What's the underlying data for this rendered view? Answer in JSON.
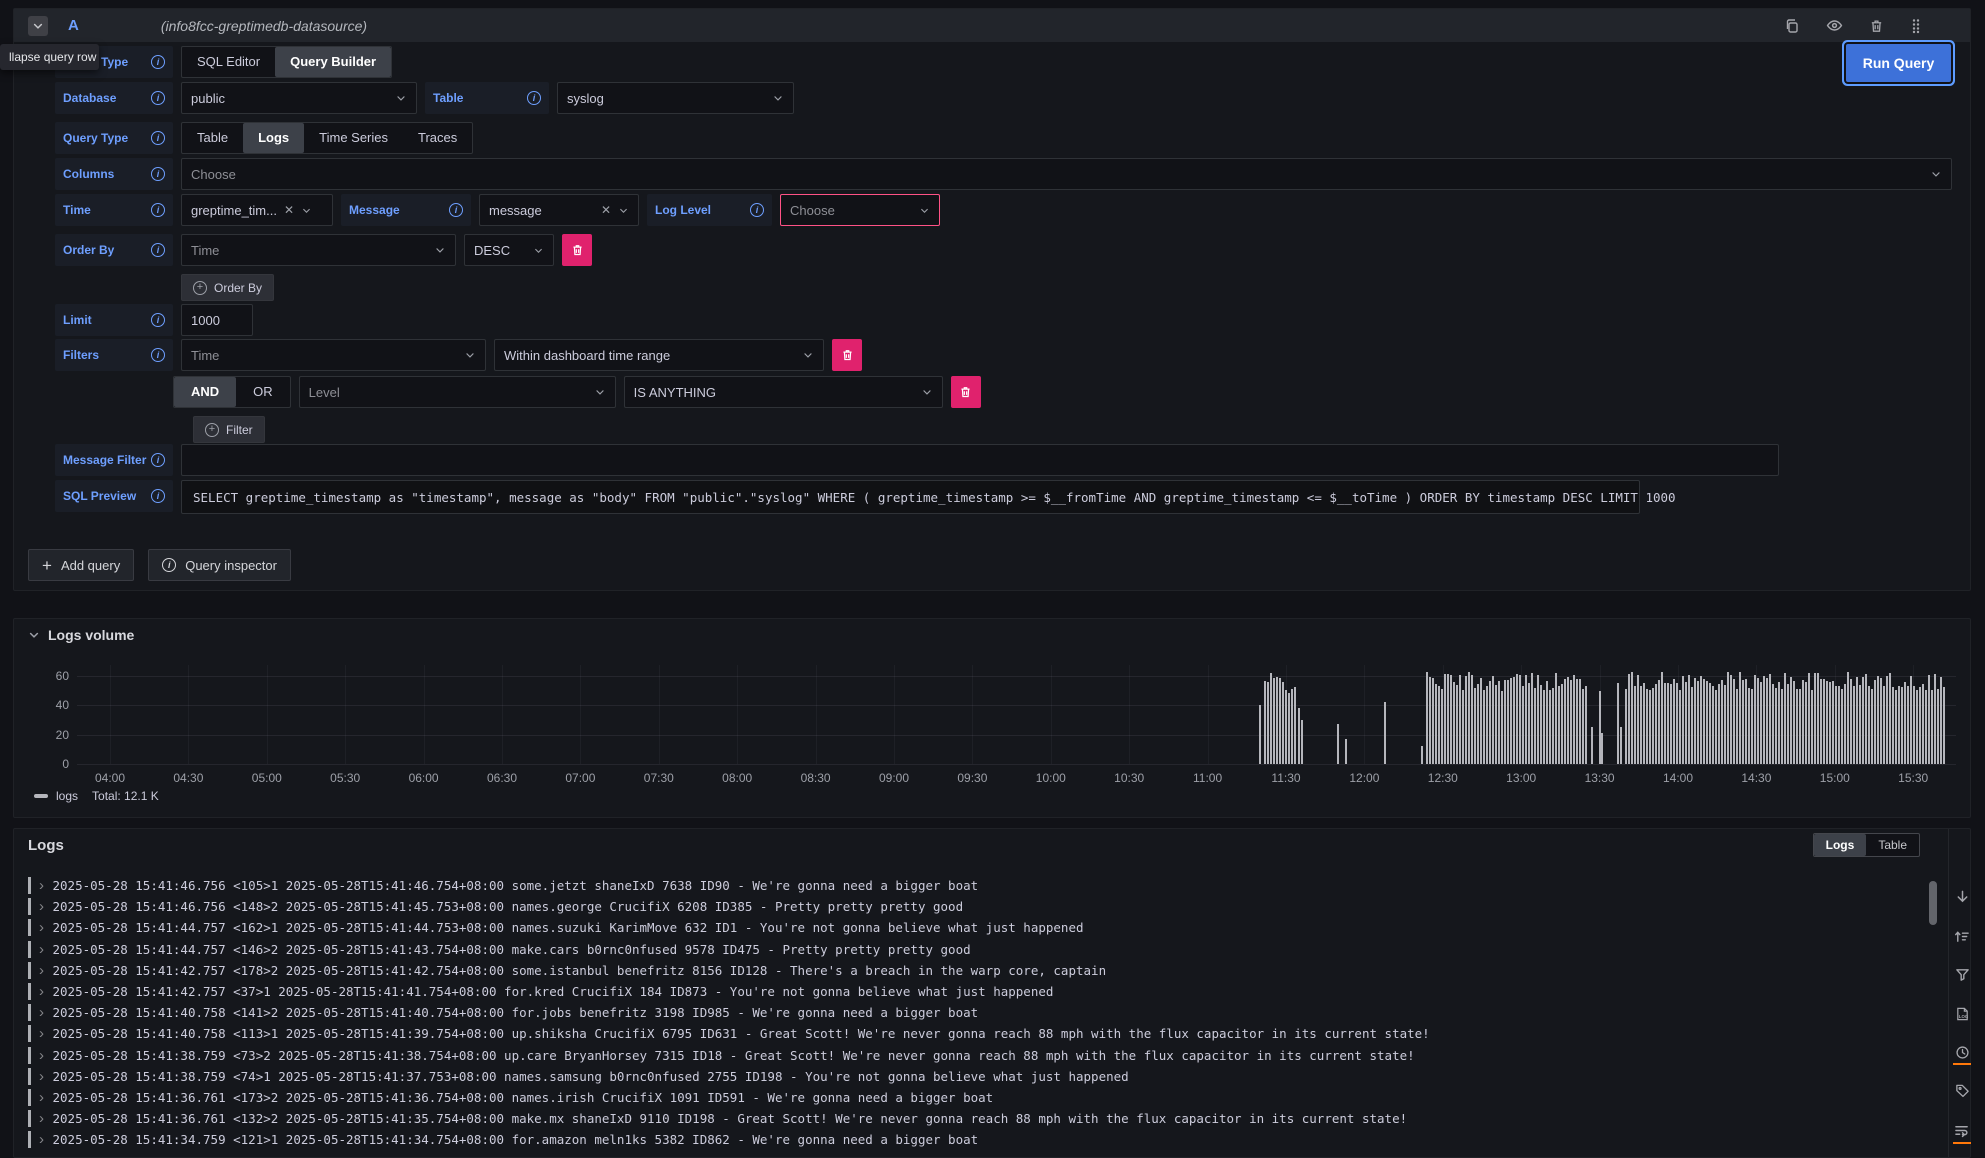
{
  "colors": {
    "accent": "#3d71d9",
    "focus_ring": "#5e9cff",
    "destructive": "#e0226d",
    "invalid_border": "#ff5286",
    "label_blue": "#6e9fff",
    "bar": "#b5b6bc",
    "orange_indicator": "#ff780a"
  },
  "query_row": {
    "ref_id": "A",
    "datasource": "(info8fcc-greptimedb-datasource)",
    "collapse_tooltip": "llapse query row",
    "run_query_label": "Run Query",
    "header_icons": [
      "duplicate-query-icon",
      "hide-response-icon",
      "remove-query-icon",
      "drag-handle-icon"
    ]
  },
  "builder": {
    "editor_type": {
      "label": "Editor Type",
      "tabs": [
        "SQL Editor",
        "Query Builder"
      ],
      "selected": "Query Builder"
    },
    "database": {
      "label": "Database",
      "value": "public"
    },
    "table": {
      "label": "Table",
      "value": "syslog"
    },
    "query_type": {
      "label": "Query Type",
      "tabs": [
        "Table",
        "Logs",
        "Time Series",
        "Traces"
      ],
      "selected": "Logs"
    },
    "columns": {
      "label": "Columns",
      "placeholder": "Choose"
    },
    "time": {
      "label": "Time",
      "value": "greptime_tim..."
    },
    "message": {
      "label": "Message",
      "value": "message"
    },
    "log_level": {
      "label": "Log Level",
      "placeholder": "Choose"
    },
    "order_by": {
      "label": "Order By",
      "field_placeholder": "Time",
      "direction": "DESC",
      "add_label": "Order By"
    },
    "limit": {
      "label": "Limit",
      "value": "1000"
    },
    "filters": {
      "label": "Filters",
      "row1": {
        "field_placeholder": "Time",
        "operator": "Within dashboard time range"
      },
      "row2": {
        "and_label": "AND",
        "or_label": "OR",
        "selected": "AND",
        "field_placeholder": "Level",
        "operator": "IS ANYTHING"
      },
      "add_label": "Filter"
    },
    "message_filter": {
      "label": "Message Filter",
      "value": ""
    },
    "sql_preview": {
      "label": "SQL Preview",
      "sql": "SELECT greptime_timestamp as \"timestamp\", message as \"body\" FROM \"public\".\"syslog\" WHERE ( greptime_timestamp >= $__fromTime AND greptime_timestamp <= $__toTime ) ORDER BY timestamp DESC LIMIT 1000"
    }
  },
  "footer": {
    "add_query": "Add query",
    "query_inspector": "Query inspector"
  },
  "logs_volume": {
    "title": "Logs volume",
    "legend": {
      "series": "logs",
      "total": "Total: 12.1 K"
    },
    "chart_data": {
      "type": "bar",
      "title": "Logs volume",
      "ylabel": "",
      "ylim": [
        0,
        67
      ],
      "yticks": [
        0,
        20,
        40,
        60
      ],
      "xticks": [
        "04:00",
        "04:30",
        "05:00",
        "05:30",
        "06:00",
        "06:30",
        "07:00",
        "07:30",
        "08:00",
        "08:30",
        "09:00",
        "09:30",
        "10:00",
        "10:30",
        "11:00",
        "11:30",
        "12:00",
        "12:30",
        "13:00",
        "13:30",
        "14:00",
        "14:30",
        "15:00",
        "15:30"
      ],
      "series": [
        {
          "name": "logs",
          "total": 12100
        }
      ],
      "clusters": [
        {
          "from": "11:22",
          "to": "11:34",
          "min": 48,
          "max": 63
        },
        {
          "from": "12:24",
          "to": "13:25",
          "min": 50,
          "max": 63
        },
        {
          "from": "13:40",
          "to": "15:42",
          "min": 50,
          "max": 63
        }
      ],
      "spikes": [
        {
          "t": "11:20",
          "v": 40
        },
        {
          "t": "11:35",
          "v": 38
        },
        {
          "t": "11:36",
          "v": 30
        },
        {
          "t": "11:50",
          "v": 27
        },
        {
          "t": "11:53",
          "v": 17
        },
        {
          "t": "12:08",
          "v": 42
        },
        {
          "t": "12:22",
          "v": 12
        },
        {
          "t": "13:27",
          "v": 25
        },
        {
          "t": "13:30",
          "v": 50
        },
        {
          "t": "13:31",
          "v": 21
        },
        {
          "t": "13:37",
          "v": 55
        },
        {
          "t": "13:38",
          "v": 25
        }
      ],
      "grid": true,
      "legend_position": "bottom-left"
    }
  },
  "logs_panel": {
    "title": "Logs",
    "toggle": {
      "logs": "Logs",
      "table": "Table",
      "selected": "Logs"
    },
    "rail_icons": [
      "scroll-to-bottom-icon",
      "sort-logs-icon",
      "filter-logs-icon",
      "log-details-icon",
      "show-time-icon",
      "show-labels-icon",
      "wrap-lines-icon"
    ],
    "rows": [
      "2025-05-28 15:41:46.756 <105>1 2025-05-28T15:41:46.754+08:00 some.jetzt shaneIxD 7638 ID90 - We're gonna need a bigger boat",
      "2025-05-28 15:41:46.756 <148>2 2025-05-28T15:41:45.753+08:00 names.george CrucifiX 6208 ID385 - Pretty pretty pretty good",
      "2025-05-28 15:41:44.757 <162>1 2025-05-28T15:41:44.753+08:00 names.suzuki KarimMove 632 ID1 - You're not gonna believe what just happened",
      "2025-05-28 15:41:44.757 <146>2 2025-05-28T15:41:43.754+08:00 make.cars b0rnc0nfused 9578 ID475 - Pretty pretty pretty good",
      "2025-05-28 15:41:42.757 <178>2 2025-05-28T15:41:42.754+08:00 some.istanbul benefritz 8156 ID128 - There's a breach in the warp core, captain",
      "2025-05-28 15:41:42.757 <37>1 2025-05-28T15:41:41.754+08:00 for.kred CrucifiX 184 ID873 - You're not gonna believe what just happened",
      "2025-05-28 15:41:40.758 <141>2 2025-05-28T15:41:40.754+08:00 for.jobs benefritz 3198 ID985 - We're gonna need a bigger boat",
      "2025-05-28 15:41:40.758 <113>1 2025-05-28T15:41:39.754+08:00 up.shiksha CrucifiX 6795 ID631 - Great Scott! We're never gonna reach 88 mph with the flux capacitor in its current state!",
      "2025-05-28 15:41:38.759 <73>2 2025-05-28T15:41:38.754+08:00 up.care BryanHorsey 7315 ID18 - Great Scott! We're never gonna reach 88 mph with the flux capacitor in its current state!",
      "2025-05-28 15:41:38.759 <74>1 2025-05-28T15:41:37.753+08:00 names.samsung b0rnc0nfused 2755 ID198 - You're not gonna believe what just happened",
      "2025-05-28 15:41:36.761 <173>2 2025-05-28T15:41:36.754+08:00 names.irish CrucifiX 1091 ID591 - We're gonna need a bigger boat",
      "2025-05-28 15:41:36.761 <132>2 2025-05-28T15:41:35.754+08:00 make.mx shaneIxD 9110 ID198 - Great Scott! We're never gonna reach 88 mph with the flux capacitor in its current state!",
      "2025-05-28 15:41:34.759 <121>1 2025-05-28T15:41:34.754+08:00 for.amazon meln1ks 5382 ID862 - We're gonna need a bigger boat"
    ]
  }
}
